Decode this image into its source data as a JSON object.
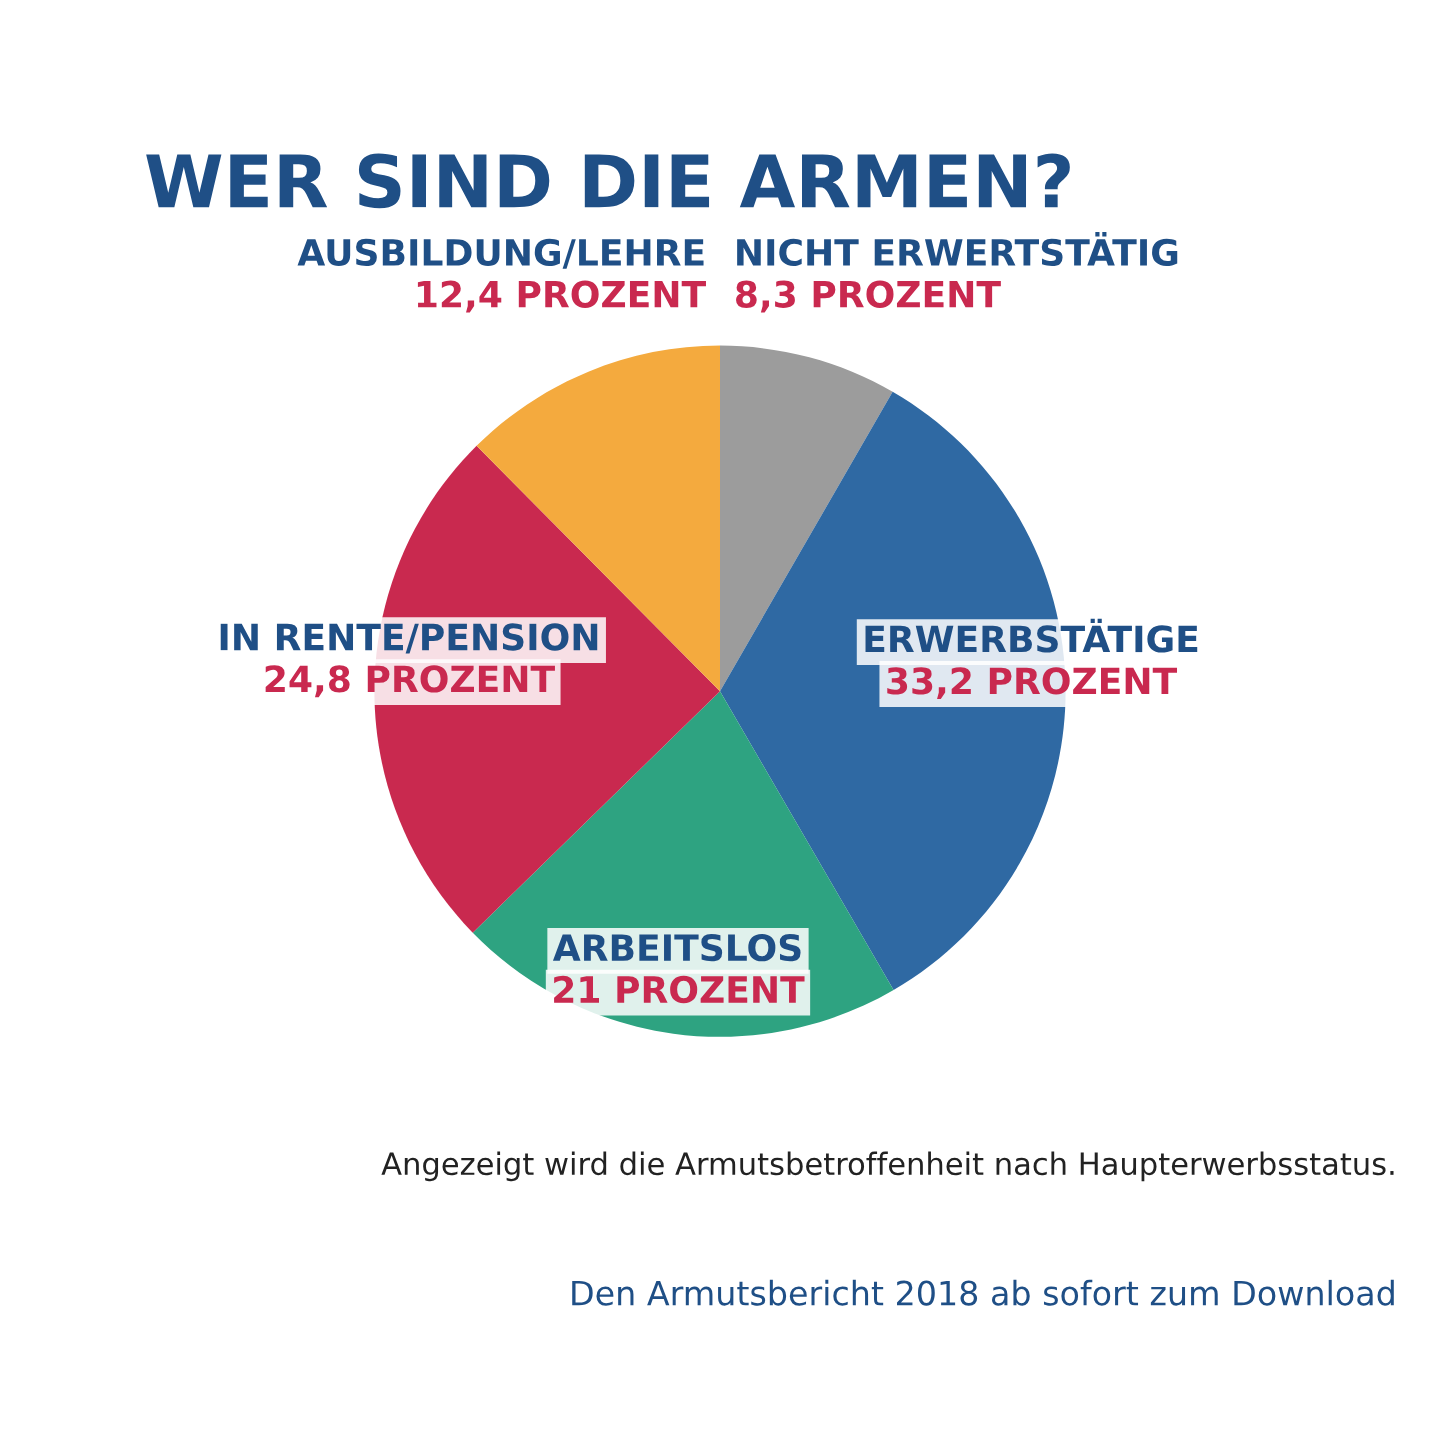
{
  "chart_data": {
    "type": "pie",
    "title": "WER SIND DIE ARMEN?",
    "categories": [
      "NICHT ERWERTSTÄTIG",
      "ERWERBSTÄTIGE",
      "ARBEITSLOS",
      "IN RENTE/PENSION",
      "AUSBILDUNG/LEHRE"
    ],
    "values": [
      8.3,
      33.2,
      21,
      24.8,
      12.4
    ],
    "value_labels": [
      "8,3 PROZENT",
      "33,2 PROZENT",
      "21 PROZENT",
      "24,8 PROZENT",
      "12,4 PROZENT"
    ],
    "colors": [
      "#9c9c9c",
      "#2f69a3",
      "#2ea381",
      "#c9294f",
      "#f4aa3e"
    ],
    "annotations": [
      "Angezeigt wird die Armutsbetroffenheit nach Haupterwerbsstatus.",
      "Den Armutsbericht 2018 ab sofort zum Download"
    ]
  }
}
